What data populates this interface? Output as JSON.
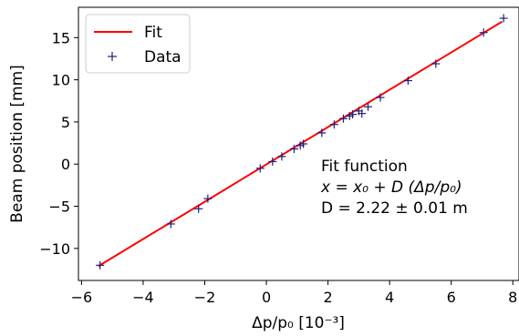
{
  "chart_data": {
    "type": "scatter",
    "xlabel": "Δp/p₀ [10⁻³]",
    "ylabel": "Beam position [mm]",
    "xlim": [
      -6.1,
      8.2
    ],
    "ylim": [
      -13.8,
      18.6
    ],
    "xticks": [
      -6,
      -4,
      -2,
      0,
      2,
      4,
      6,
      8
    ],
    "yticks": [
      -10,
      -5,
      0,
      5,
      10,
      15
    ],
    "grid": false,
    "legend_position": "top-left",
    "series": [
      {
        "name": "Fit",
        "type": "line",
        "color": "#ff0000",
        "x": [
          -5.45,
          7.65
        ],
        "y": [
          -12.1,
          16.9
        ]
      },
      {
        "name": "Data",
        "type": "scatter",
        "marker": "plus",
        "color": "#1f1f7a",
        "x": [
          -5.4,
          -3.1,
          -2.2,
          -1.9,
          -0.2,
          0.2,
          0.5,
          0.9,
          1.1,
          1.2,
          1.8,
          2.2,
          2.5,
          2.7,
          2.8,
          3.0,
          3.1,
          3.3,
          3.7,
          4.6,
          5.5,
          7.05,
          7.7
        ],
        "y": [
          -12.0,
          -7.1,
          -5.3,
          -4.1,
          -0.5,
          0.3,
          0.9,
          1.8,
          2.2,
          2.4,
          3.7,
          4.7,
          5.4,
          5.7,
          5.9,
          6.3,
          6.0,
          6.8,
          7.9,
          9.9,
          11.9,
          15.6,
          17.3
        ]
      }
    ],
    "annotation": {
      "line1": "Fit function",
      "line2": "x = x₀ + D (Δp/p₀)",
      "line3": "D = 2.22 ± 0.01 m"
    }
  }
}
